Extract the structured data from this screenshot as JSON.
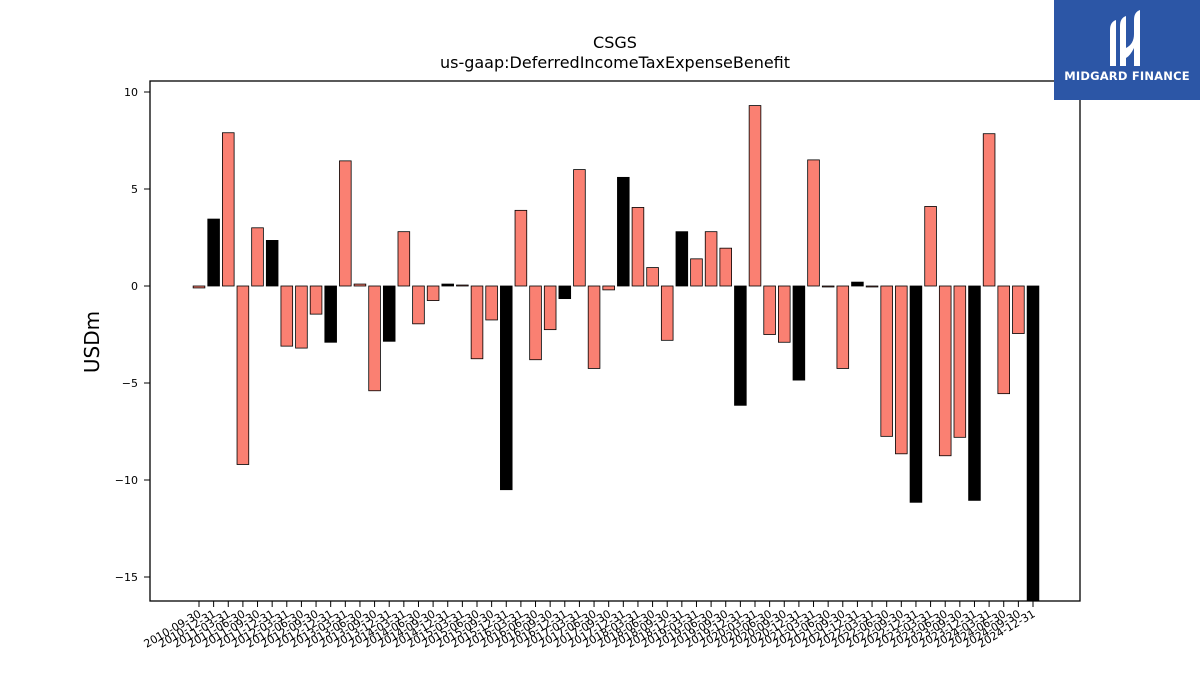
{
  "logo": {
    "text": "MIDGARD FINANCE",
    "bg_color": "#2c56a6"
  },
  "chart_data": {
    "type": "bar",
    "title": "CSGS",
    "subtitle": "us-gaap:DeferredIncomeTaxExpenseBenefit",
    "ylabel": "USDm",
    "xlabel": "",
    "ylim": [
      -16.2,
      10.6
    ],
    "yticks": [
      10,
      5,
      0,
      -5,
      -10,
      -15
    ],
    "ytick_labels": [
      "10",
      "5",
      "0",
      "−5",
      "−10",
      "−15"
    ],
    "colors": {
      "quarterly": "#fa8072",
      "annual": "#000000",
      "edge": "#000000"
    },
    "categories": [
      "2010-09-30",
      "2010-12-31",
      "2011-03-31",
      "2011-06-30",
      "2011-09-30",
      "2011-12-31",
      "2012-03-31",
      "2012-06-30",
      "2012-09-30",
      "2012-12-31",
      "2013-03-31",
      "2013-06-30",
      "2013-09-30",
      "2013-12-31",
      "2014-03-31",
      "2014-06-30",
      "2014-09-30",
      "2014-12-31",
      "2015-03-31",
      "2015-06-30",
      "2015-09-30",
      "2015-12-31",
      "2016-03-31",
      "2016-06-30",
      "2016-09-30",
      "2016-12-31",
      "2017-03-31",
      "2017-06-30",
      "2017-09-30",
      "2017-12-31",
      "2018-03-31",
      "2018-06-30",
      "2018-09-30",
      "2018-12-31",
      "2019-03-31",
      "2019-06-30",
      "2019-09-30",
      "2019-12-31",
      "2020-03-31",
      "2020-06-30",
      "2020-09-30",
      "2020-12-31",
      "2021-03-31",
      "2021-06-30",
      "2021-09-30",
      "2021-12-31",
      "2022-03-31",
      "2022-06-30",
      "2022-09-30",
      "2022-12-31",
      "2023-03-31",
      "2023-06-30",
      "2023-09-30",
      "2023-12-31",
      "2024-03-31",
      "2024-06-30",
      "2024-09-30",
      "2024-12-31"
    ],
    "series": [
      {
        "values": [
          -0.1,
          3.45,
          7.9,
          -9.2,
          3.0,
          2.35,
          -3.1,
          -3.2,
          -1.45,
          -2.9,
          6.45,
          0.1,
          -5.4,
          -2.85,
          2.8,
          -1.95,
          -0.75,
          0.1,
          0.05,
          -3.75,
          -1.75,
          -10.5,
          3.9,
          -3.8,
          -2.25,
          -0.65,
          6.0,
          -4.25,
          -0.2,
          5.6,
          4.05,
          0.95,
          -2.8,
          2.8,
          1.4,
          2.8,
          1.95,
          -6.15,
          9.3,
          -2.5,
          -2.9,
          -4.85,
          6.5,
          -0.05,
          -4.25,
          0.2,
          -0.05,
          -7.75,
          -8.65,
          -11.15,
          4.1,
          -8.75,
          -7.8,
          -11.05,
          7.85,
          -5.55,
          -2.45,
          -16.2
        ],
        "kinds": [
          "q",
          "a",
          "q",
          "q",
          "q",
          "a",
          "q",
          "q",
          "q",
          "a",
          "q",
          "q",
          "q",
          "a",
          "q",
          "q",
          "q",
          "a",
          "q",
          "q",
          "q",
          "a",
          "q",
          "q",
          "q",
          "a",
          "q",
          "q",
          "q",
          "a",
          "q",
          "q",
          "q",
          "a",
          "q",
          "q",
          "q",
          "a",
          "q",
          "q",
          "q",
          "a",
          "q",
          "q",
          "q",
          "a",
          "q",
          "q",
          "q",
          "a",
          "q",
          "q",
          "q",
          "a",
          "q",
          "q",
          "q",
          "a"
        ]
      }
    ]
  }
}
